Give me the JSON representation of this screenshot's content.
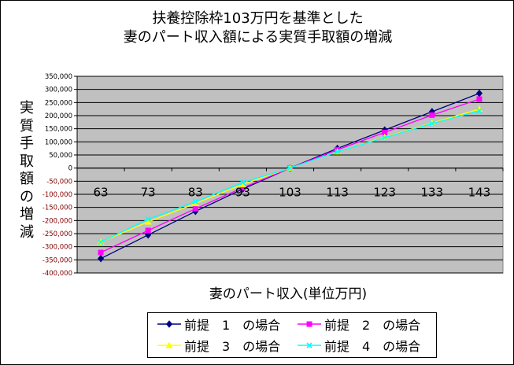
{
  "chart_data": {
    "type": "line",
    "title_lines": [
      "扶養控除枠103万円を基準とした",
      "妻のパート収入額による実質手取額の増減"
    ],
    "ylabel": "実質手取額の増減",
    "xlabel": "妻のパート収入(単位万円)",
    "categories": [
      "63",
      "73",
      "83",
      "93",
      "103",
      "113",
      "123",
      "133",
      "143"
    ],
    "ylim": [
      -400000,
      350000
    ],
    "ytick_step": 50000,
    "ytick_labels": [
      "350,000",
      "300,000",
      "250,000",
      "200,000",
      "150,000",
      "100,000",
      "50,000",
      "0",
      "-50,000",
      "-100,000",
      "-150,000",
      "-200,000",
      "-250,000",
      "-300,000",
      "-350,000",
      "-400,000"
    ],
    "grid": true,
    "plot_background": "#c0c0c0",
    "legend_position": "bottom",
    "series": [
      {
        "name": "前提　1　の場合",
        "color": "#000080",
        "marker": "diamond",
        "values": [
          -345000,
          -255000,
          -165000,
          -80000,
          0,
          75000,
          145000,
          215000,
          285000
        ]
      },
      {
        "name": "前提　2　の場合",
        "color": "#ff00ff",
        "marker": "square",
        "values": [
          -322000,
          -238000,
          -155000,
          -75000,
          0,
          70000,
          136000,
          202000,
          263000
        ]
      },
      {
        "name": "前提　3　の場合",
        "color": "#ffff00",
        "marker": "triangle",
        "values": [
          -282000,
          -205000,
          -135000,
          -62000,
          0,
          62000,
          118000,
          172000,
          225000
        ]
      },
      {
        "name": "前提　4　の場合",
        "color": "#00ffff",
        "marker": "x",
        "values": [
          -282000,
          -195000,
          -128000,
          -55000,
          0,
          62000,
          116000,
          170000,
          218000
        ]
      }
    ]
  }
}
